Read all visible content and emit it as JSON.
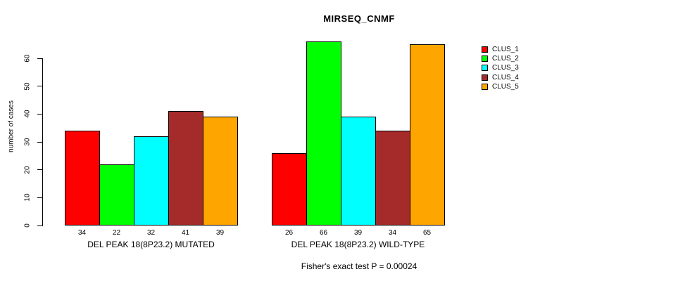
{
  "chart_data": {
    "type": "bar",
    "title": "MIRSEQ_CNMF",
    "ylabel": "number of cases",
    "footnote": "Fisher's exact test P = 0.00024",
    "categories": [
      "DEL PEAK 18(8P23.2) MUTATED",
      "DEL PEAK 18(8P23.2) WILD-TYPE"
    ],
    "series": [
      {
        "name": "CLUS_1",
        "color": "#FF0000",
        "values": [
          34,
          26
        ]
      },
      {
        "name": "CLUS_2",
        "color": "#00FF00",
        "values": [
          22,
          66
        ]
      },
      {
        "name": "CLUS_3",
        "color": "#00FFFF",
        "values": [
          32,
          39
        ]
      },
      {
        "name": "CLUS_4",
        "color": "#A52A2A",
        "values": [
          41,
          34
        ]
      },
      {
        "name": "CLUS_5",
        "color": "#FFA500",
        "values": [
          39,
          65
        ]
      }
    ],
    "yticks": [
      0,
      10,
      20,
      30,
      40,
      50,
      60
    ],
    "ylim": [
      0,
      66
    ],
    "bar_value_labels": true,
    "legend_position": "right",
    "grid": false
  }
}
